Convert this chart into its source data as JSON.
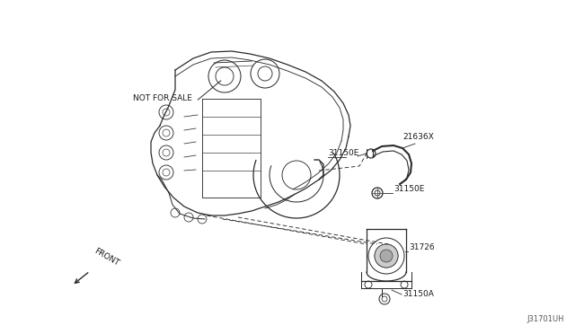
{
  "bg_color": "#ffffff",
  "line_color": "#2a2a2a",
  "text_color": "#1a1a1a",
  "watermark": "J31701UH",
  "figsize": [
    6.4,
    3.72
  ],
  "dpi": 100,
  "labels": {
    "not_for_sale": "NOT FOR SALE",
    "21636X": "21636X",
    "31150E_a": "31150E",
    "31150E_b": "31150E",
    "31726": "31726",
    "31150A": "31150A",
    "front": "FRONT"
  }
}
